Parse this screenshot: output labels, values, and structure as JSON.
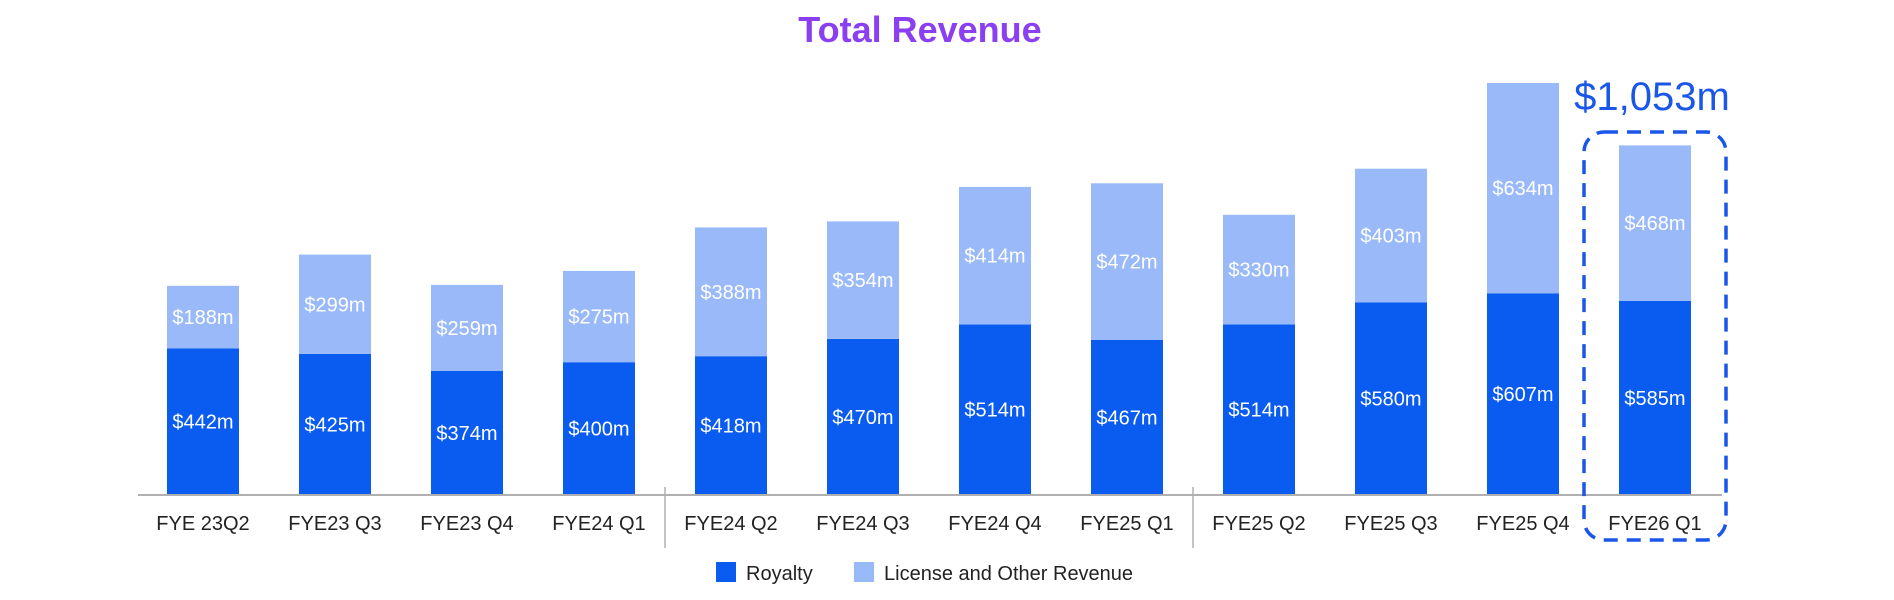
{
  "chart_data": {
    "type": "bar",
    "stacked": true,
    "title": "Total Revenue",
    "categories": [
      "FYE 23Q2",
      "FYE23 Q3",
      "FYE23 Q4",
      "FYE24 Q1",
      "FYE24 Q2",
      "FYE24 Q3",
      "FYE24 Q4",
      "FYE25 Q1",
      "FYE25 Q2",
      "FYE25 Q3",
      "FYE25 Q4",
      "FYE26 Q1"
    ],
    "series": [
      {
        "name": "Royalty",
        "color": "#0a5cf0",
        "values": [
          442,
          425,
          374,
          400,
          418,
          470,
          514,
          467,
          514,
          580,
          607,
          585
        ],
        "labels": [
          "$442m",
          "$425m",
          "$374m",
          "$400m",
          "$418m",
          "$470m",
          "$514m",
          "$467m",
          "$514m",
          "$580m",
          "$607m",
          "$585m"
        ]
      },
      {
        "name": "License and Other Revenue",
        "color": "#9ab9f8",
        "values": [
          188,
          299,
          259,
          275,
          388,
          354,
          414,
          472,
          330,
          403,
          634,
          468
        ],
        "labels": [
          "$188m",
          "$299m",
          "$259m",
          "$275m",
          "$388m",
          "$354m",
          "$414m",
          "$472m",
          "$330m",
          "$403m",
          "$634m",
          "$468m"
        ]
      }
    ],
    "ylim": [
      0,
      1241
    ],
    "grid": false,
    "legend": "bottom-center",
    "highlight": {
      "category_index": 11,
      "label": "$1,053m",
      "color": "#1a56e8"
    }
  }
}
